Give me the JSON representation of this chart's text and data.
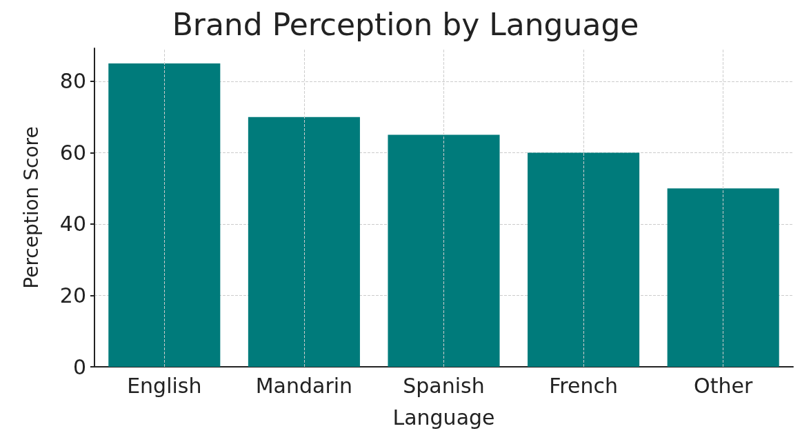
{
  "chart_data": {
    "type": "bar",
    "title": "Brand Perception by Language",
    "xlabel": "Language",
    "ylabel": "Perception Score",
    "categories": [
      "English",
      "Mandarin",
      "Spanish",
      "French",
      "Other"
    ],
    "values": [
      85,
      70,
      65,
      60,
      50
    ],
    "color": "#007b7b",
    "ylim": [
      0,
      89.25
    ],
    "yticks": [
      0,
      20,
      40,
      60,
      80
    ],
    "grid": true
  }
}
